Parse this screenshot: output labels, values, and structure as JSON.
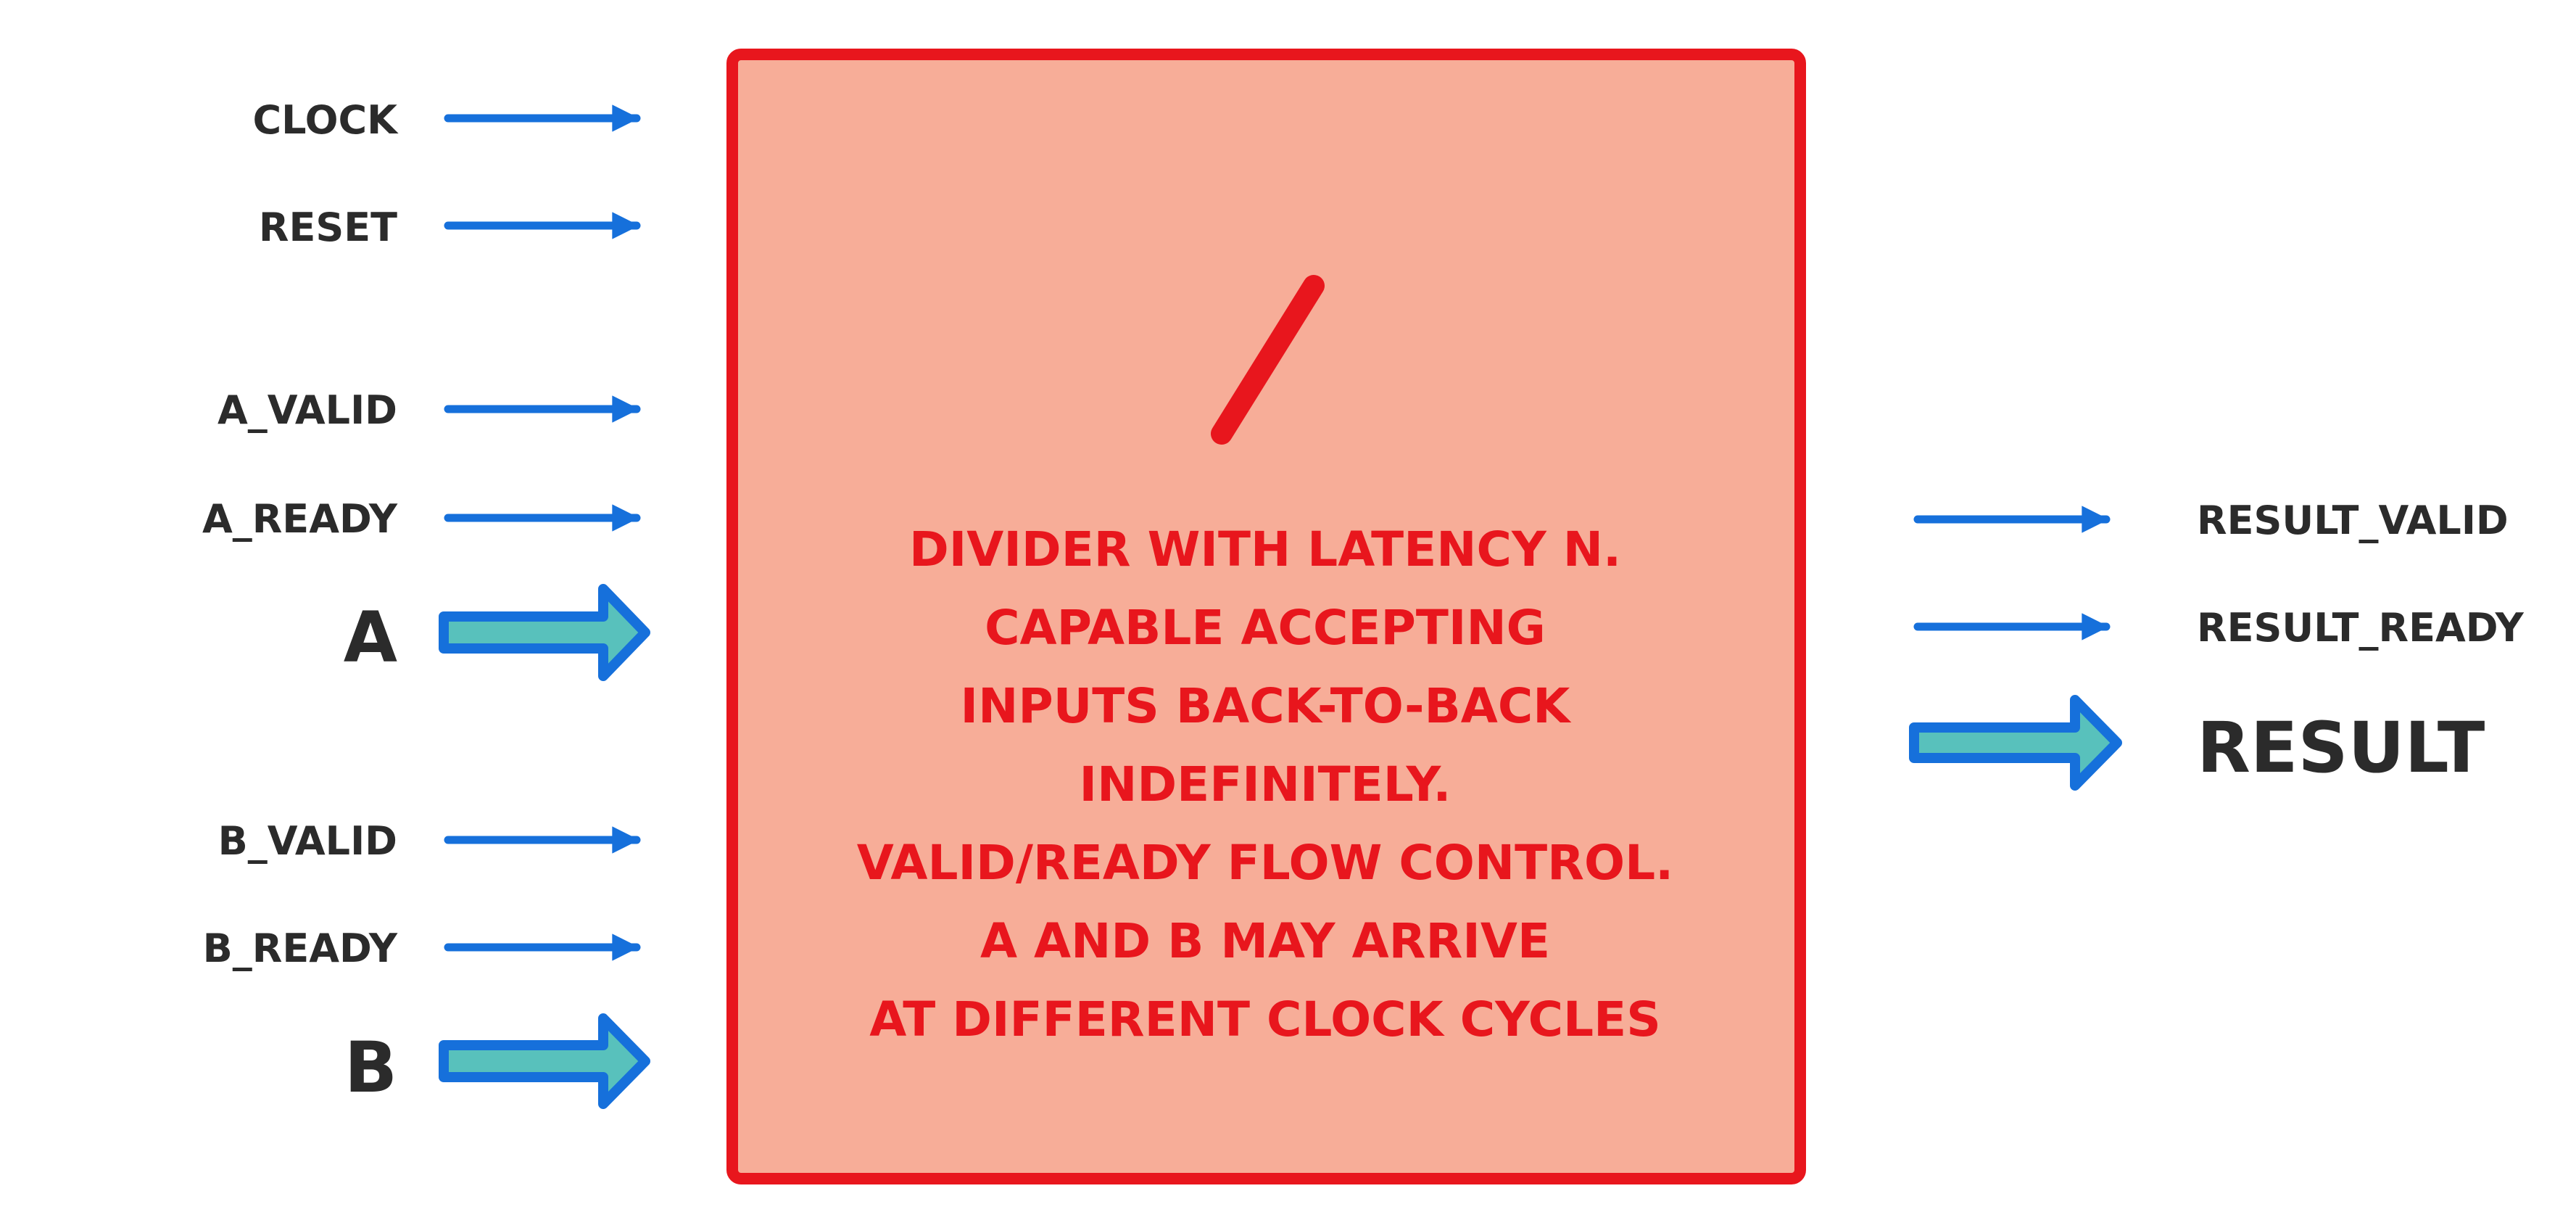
{
  "colors": {
    "box_fill": "#f7ad98",
    "box_stroke": "#e8161d",
    "note_text": "#e8161d",
    "signal_arrow": "#1670db",
    "bus_arrow_fill": "#58c1bc",
    "bus_arrow_stroke": "#1670db",
    "label_text": "#2b2b2b"
  },
  "block": {
    "symbol": "/",
    "description_lines": [
      "DIVIDER WITH LATENCY N.",
      "CAPABLE ACCEPTING",
      "INPUTS BACK-TO-BACK",
      "INDEFINITELY.",
      "VALID/READY FLOW CONTROL.",
      "A AND B MAY ARRIVE",
      "AT DIFFERENT CLOCK CYCLES"
    ]
  },
  "inputs": {
    "clock": "CLOCK",
    "reset": "RESET",
    "a_valid": "A_VALID",
    "a_ready": "A_READY",
    "a": "A",
    "b_valid": "B_VALID",
    "b_ready": "B_READY",
    "b": "B"
  },
  "outputs": {
    "result_valid": "RESULT_VALID",
    "result_ready": "RESULT_READY",
    "result": "RESULT"
  }
}
